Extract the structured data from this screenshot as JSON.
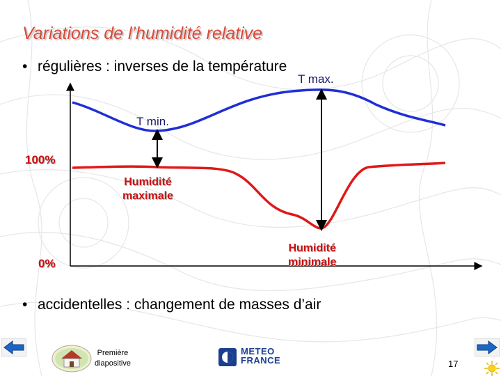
{
  "slide": {
    "title": "Variations de l’humidité relative",
    "bullets": [
      "régulières : inverses de la température",
      "accidentelles : changement de masses d’air"
    ],
    "bullet_symbol": "•"
  },
  "diagram": {
    "labels": {
      "t_max": "T max.",
      "t_min": "T min.",
      "hundred_percent": "100%",
      "zero_percent": "0%",
      "humidity_max_line1": "Humidité",
      "humidity_max_line2": "maximale",
      "humidity_min_line1": "Humidité",
      "humidity_min_line2": "minimale"
    },
    "colors": {
      "temperature_curve": "#1f2fd6",
      "humidity_curve": "#e01818",
      "axes": "#000000",
      "accent_title": "#d84b3a"
    }
  },
  "footer": {
    "home_label_line1": "Première",
    "home_label_line2": "diapositive",
    "logo_line1": "METEO",
    "logo_line2": "FRANCE",
    "page_number": "17",
    "icons": [
      "arrow-left-icon",
      "house-icon",
      "meteo-france-logo-icon",
      "arrow-right-icon",
      "sun-icon"
    ]
  }
}
